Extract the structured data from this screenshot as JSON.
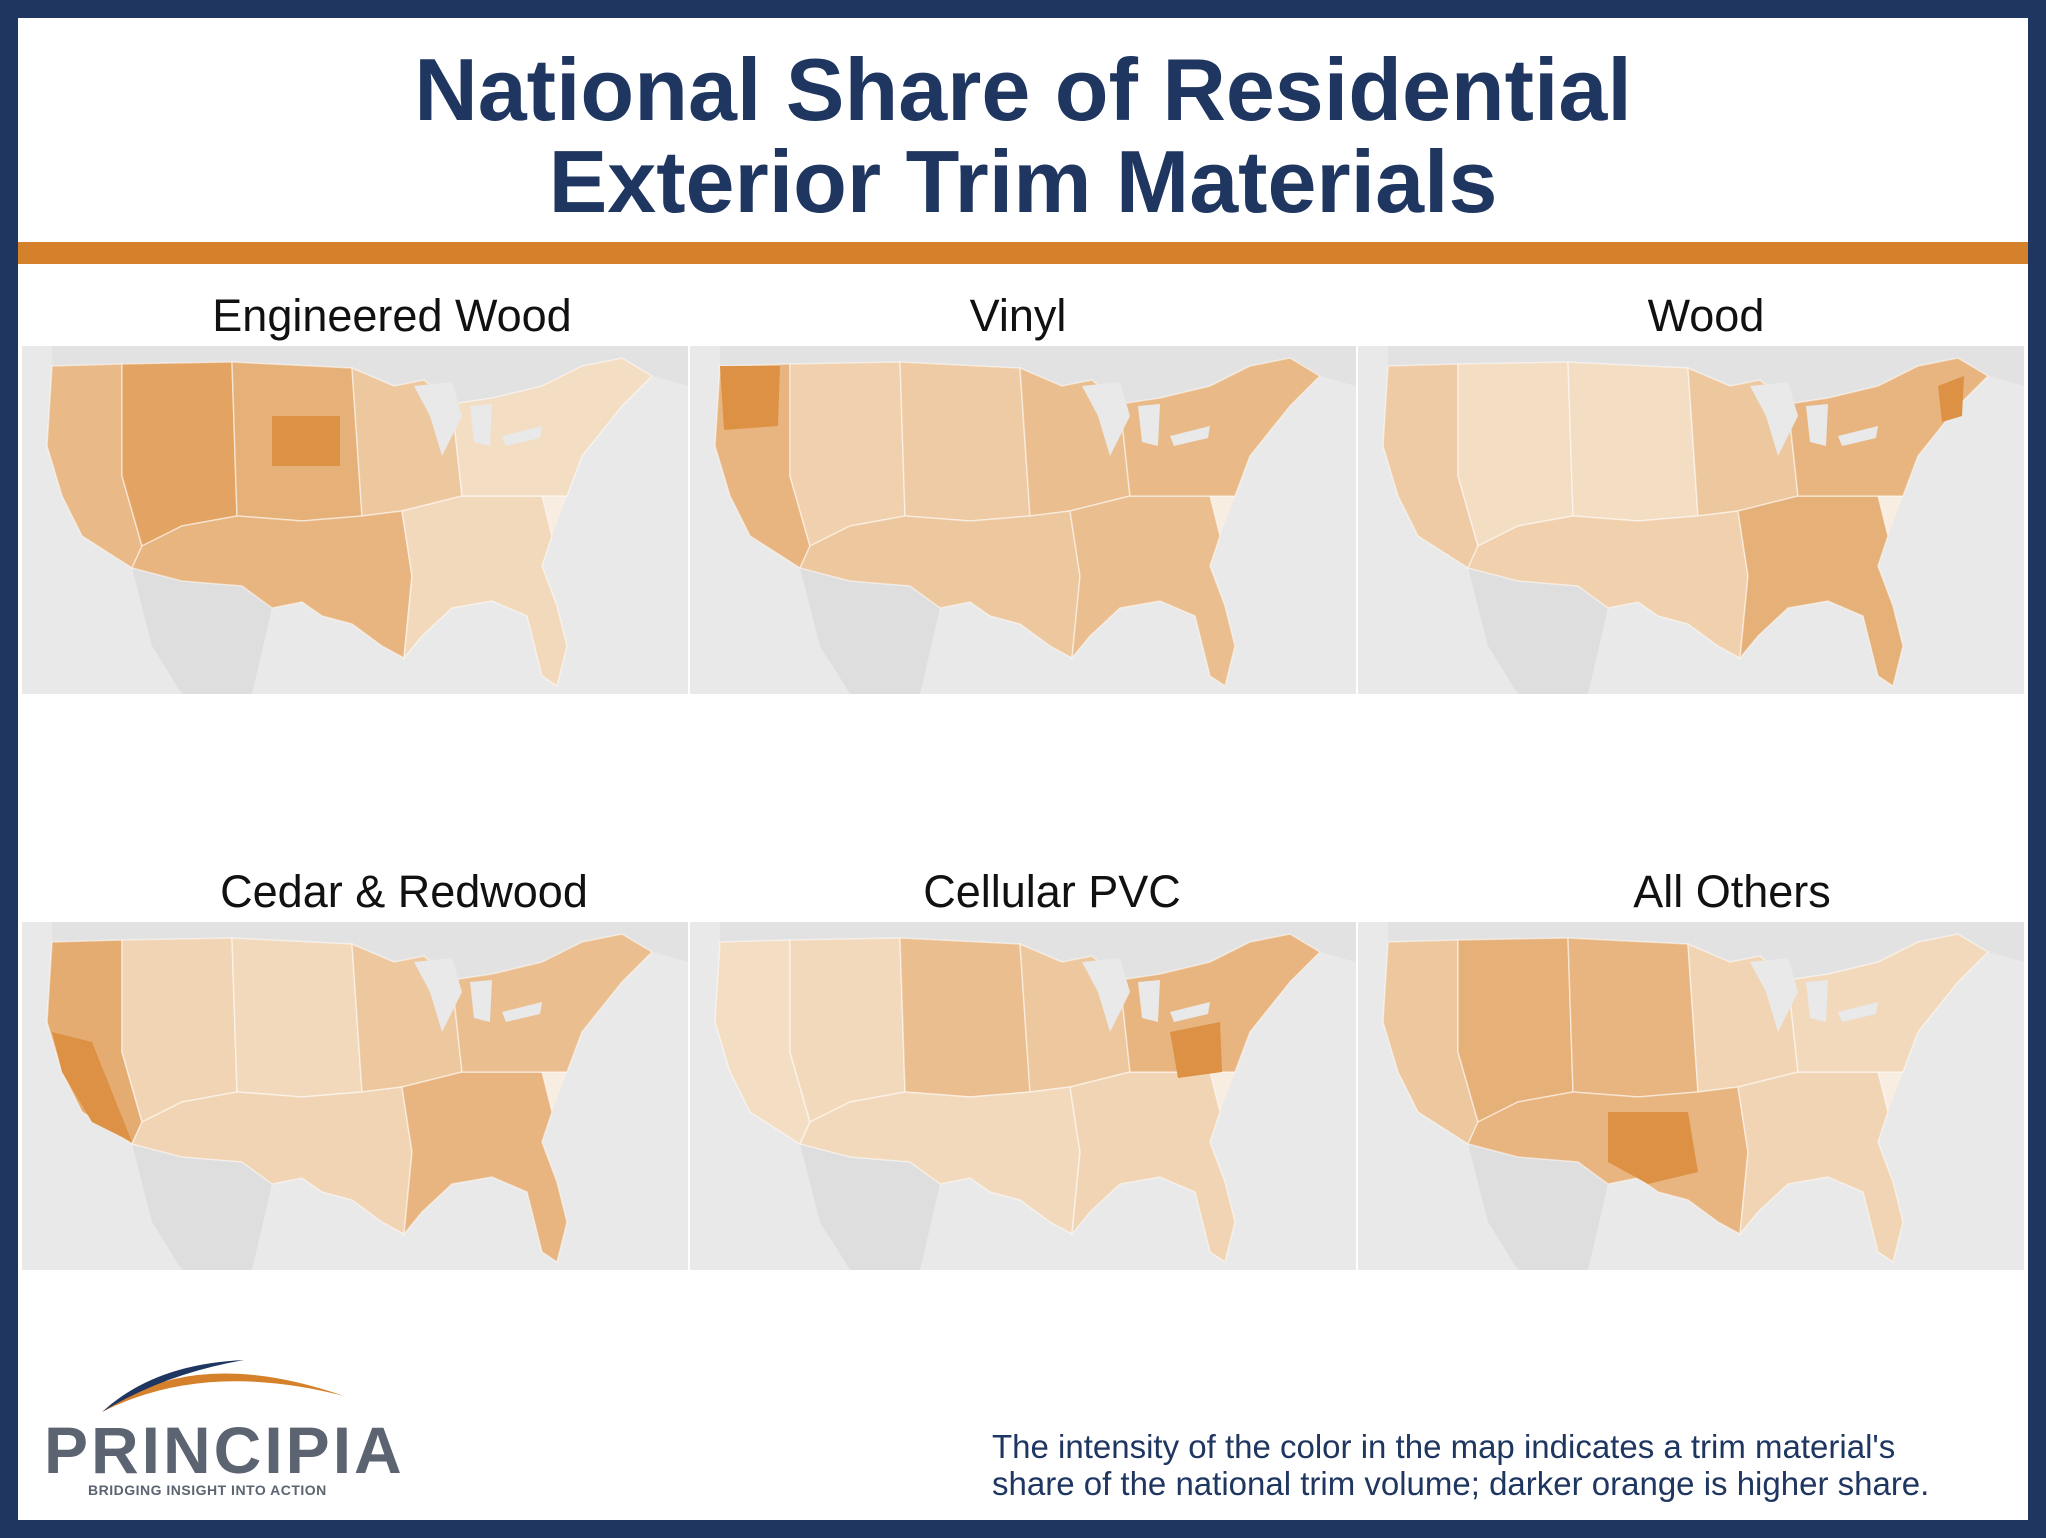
{
  "title": {
    "line1": "National Share of Residential",
    "line2": "Exterior Trim Materials"
  },
  "colors": {
    "frame": "#1f3660",
    "accent_rule": "#d5812c",
    "land_base": "#f7ede1",
    "scale_light": "#f6e6d2",
    "scale_dark": "#dc8d3c",
    "background_map": "#e9e9e9"
  },
  "panels": [
    {
      "title": "Engineered Wood",
      "intensity": {
        "west": 0.5,
        "mountain": 0.75,
        "plains": 0.6,
        "midwest": 0.35,
        "south": 0.55,
        "southeast": 0.15,
        "northeast": 0.1,
        "hotspot": "dakotas"
      }
    },
    {
      "title": "Vinyl",
      "intensity": {
        "west": 0.55,
        "mountain": 0.25,
        "plains": 0.3,
        "midwest": 0.45,
        "south": 0.35,
        "southeast": 0.45,
        "northeast": 0.5,
        "hotspot": "pacific-northwest"
      }
    },
    {
      "title": "Wood",
      "intensity": {
        "west": 0.3,
        "mountain": 0.1,
        "plains": 0.1,
        "midwest": 0.35,
        "south": 0.25,
        "southeast": 0.6,
        "northeast": 0.55,
        "hotspot": "new-england"
      }
    },
    {
      "title": "Cedar & Redwood",
      "intensity": {
        "west": 0.65,
        "mountain": 0.2,
        "plains": 0.15,
        "midwest": 0.35,
        "south": 0.2,
        "southeast": 0.55,
        "northeast": 0.45,
        "hotspot": "california"
      }
    },
    {
      "title": "Cellular PVC",
      "intensity": {
        "west": 0.1,
        "mountain": 0.15,
        "plains": 0.45,
        "midwest": 0.35,
        "south": 0.15,
        "southeast": 0.2,
        "northeast": 0.55,
        "hotspot": "mid-atlantic"
      }
    },
    {
      "title": "All Others",
      "intensity": {
        "west": 0.35,
        "mountain": 0.6,
        "plains": 0.55,
        "midwest": 0.2,
        "south": 0.55,
        "southeast": 0.2,
        "northeast": 0.15,
        "hotspot": "texas-oklahoma"
      }
    }
  ],
  "logo": {
    "name": "PRINCIPIA",
    "tagline": "BRIDGING INSIGHT INTO ACTION"
  },
  "footnote": {
    "line1": "The intensity of the color in the map indicates a trim material's",
    "line2": "share of the national trim volume; darker orange is higher share."
  }
}
